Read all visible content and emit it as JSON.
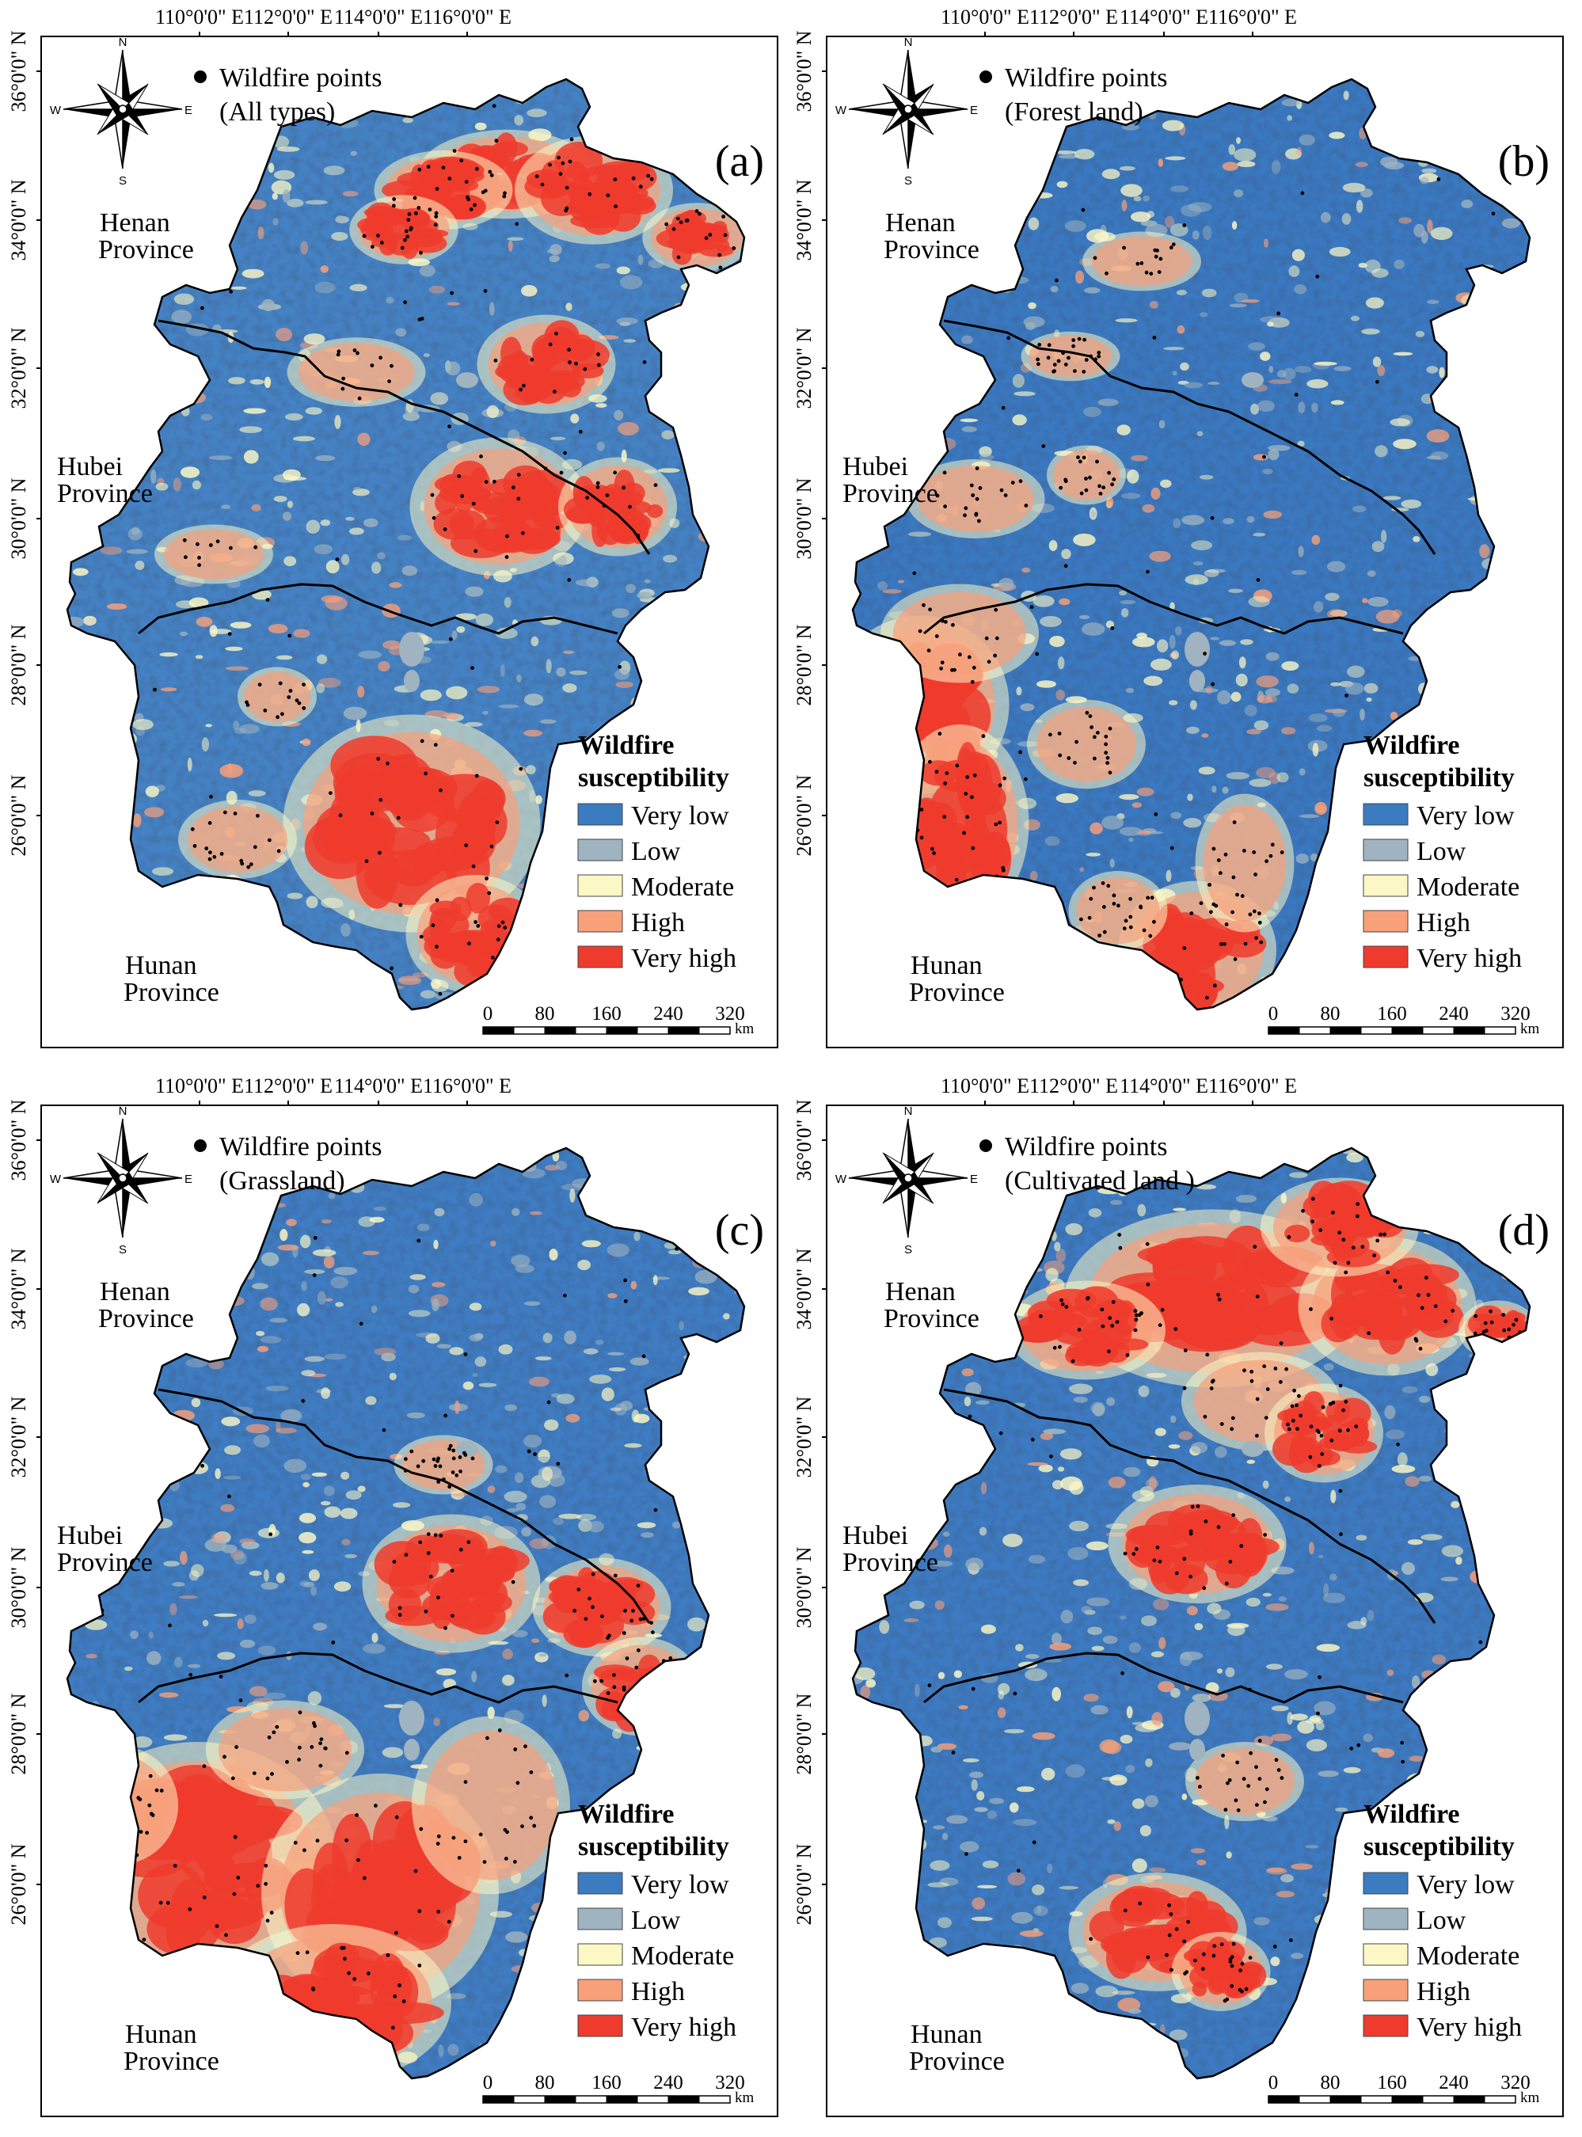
{
  "longitude_labels": [
    "110°0'0\" E",
    "112°0'0\" E",
    "114°0'0\" E",
    "116°0'0\" E"
  ],
  "latitude_labels": [
    "36°0'0\" N",
    "34°0'0\" N",
    "32°0'0\" N",
    "30°0'0\" N",
    "28°0'0\" N",
    "26°0'0\" N"
  ],
  "compass": {
    "north": "N",
    "south": "S",
    "east": "E",
    "west": "W"
  },
  "provinces": {
    "henan": [
      "Henan",
      "Province"
    ],
    "hubei": [
      "Hubei",
      "Province"
    ],
    "hunan": [
      "Hunan",
      "Province"
    ]
  },
  "legend": {
    "title": [
      "Wildfire",
      "susceptibility"
    ],
    "classes": [
      {
        "label": "Very low",
        "color": "#3b7bc0"
      },
      {
        "label": "Low",
        "color": "#9fb3c0"
      },
      {
        "label": "Moderate",
        "color": "#fcf8c6"
      },
      {
        "label": "High",
        "color": "#f7a07a"
      },
      {
        "label": "Very high",
        "color": "#ee3b2d"
      }
    ]
  },
  "scale_bar": {
    "ticks": [
      "0",
      "80",
      "160",
      "240",
      "320"
    ],
    "unit": "km"
  },
  "point_legend": {
    "label": "Wildfire points",
    "color": "#000000"
  },
  "panels": [
    {
      "letter": "(a)",
      "point_type": "(All types)"
    },
    {
      "letter": "(b)",
      "point_type": "(Forest land)"
    },
    {
      "letter": "(c)",
      "point_type": "(Grassland)"
    },
    {
      "letter": "(d)",
      "point_type": "(Cultivated land )"
    }
  ]
}
